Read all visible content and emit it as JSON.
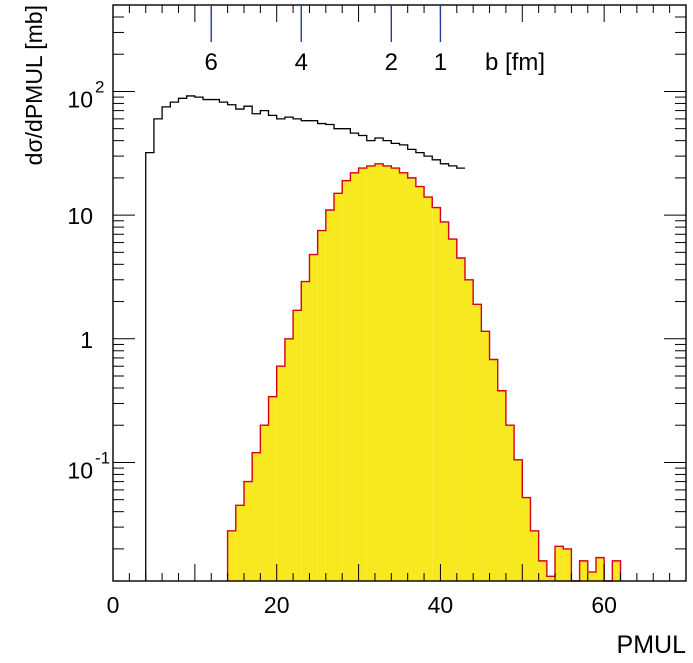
{
  "chart_data": {
    "type": "bar",
    "xlabel": "PMUL",
    "ylabel": "dσ/dPMUL [mb]",
    "xlim": [
      0,
      70
    ],
    "ylim": [
      0.011,
      500
    ],
    "y_scale": "log",
    "grid": false,
    "x_ticks": [
      "0",
      "20",
      "40",
      "60"
    ],
    "y_tick_labels": [
      {
        "value": 100,
        "base": "10",
        "exp": "2"
      },
      {
        "value": 10,
        "base": "10",
        "exp": ""
      },
      {
        "value": 1,
        "base": "1",
        "exp": ""
      },
      {
        "value": 0.1,
        "base": "10",
        "exp": "-1"
      }
    ],
    "top_axis": {
      "label": "b [fm]",
      "ticks": [
        {
          "label": "6",
          "pmul": 12
        },
        {
          "label": "4",
          "pmul": 23
        },
        {
          "label": "2",
          "pmul": 34
        },
        {
          "label": "1",
          "pmul": 40
        }
      ]
    },
    "series": [
      {
        "style": "outline",
        "color": "#000000",
        "x_start": 4,
        "bin_width": 1,
        "values": [
          32,
          60,
          75,
          82,
          88,
          92,
          90,
          86,
          86,
          82,
          78,
          72,
          76,
          66,
          70,
          64,
          60,
          62,
          60,
          58,
          58,
          55,
          54,
          50,
          50,
          46,
          44,
          40,
          42,
          40,
          38,
          37,
          34,
          32,
          30,
          28,
          26,
          25,
          24
        ]
      },
      {
        "style": "filled",
        "fill": "#f8e81e",
        "edge": "#d6001c",
        "x_start": 14,
        "bin_width": 1,
        "values": [
          0.028,
          0.045,
          0.07,
          0.12,
          0.2,
          0.34,
          0.6,
          1.0,
          1.7,
          2.9,
          4.8,
          7.5,
          11,
          15,
          19,
          22,
          24,
          25,
          26,
          25,
          24,
          22,
          20,
          17,
          14,
          11.5,
          8.8,
          6.4,
          4.5,
          3.0,
          1.9,
          1.15,
          0.68,
          0.38,
          0.2,
          0.105,
          0.052,
          0.028,
          0.016,
          0.012,
          0.021,
          0.02,
          0.011,
          0.016,
          0.013,
          0.017,
          0.011,
          0.016
        ]
      }
    ]
  }
}
